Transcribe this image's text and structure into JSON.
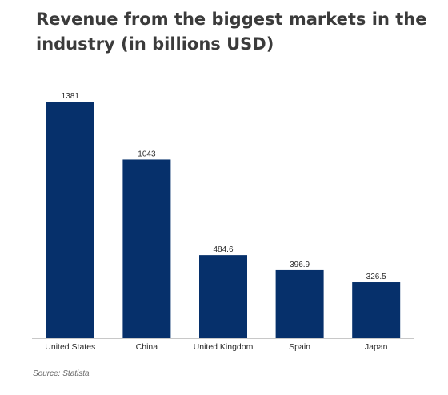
{
  "chart_data": {
    "type": "bar",
    "title": "Revenue from the biggest markets in the industry (in billions USD)",
    "categories": [
      "United States",
      "China",
      "United Kingdom",
      "Spain",
      "Japan"
    ],
    "values": [
      1381,
      1043,
      484.6,
      396.9,
      326.5
    ],
    "value_labels": [
      "1381",
      "1043",
      "484.6",
      "396.9",
      "326.5"
    ],
    "xlabel": "",
    "ylabel": "",
    "ylim": [
      0,
      1381
    ],
    "grid": false,
    "legend": "none",
    "colors": {
      "bar": "#06306b",
      "baseline": "#c8c8c8",
      "title": "#3b3b3b",
      "label": "#2b2b2b"
    }
  },
  "source": "Source: Statista"
}
